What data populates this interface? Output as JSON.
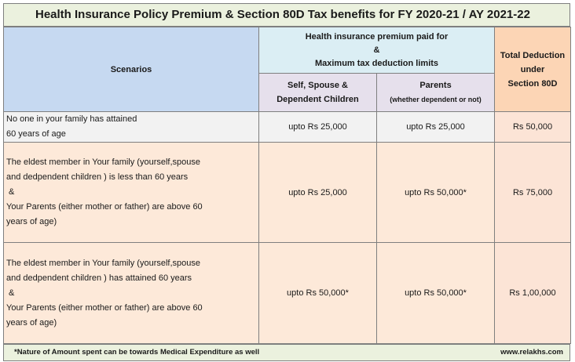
{
  "title": "Health Insurance Policy Premium & Section 80D Tax benefits for FY 2020-21 / AY 2021-22",
  "header": {
    "scenarios": "Scenarios",
    "premium_group": [
      "Health insurance premium paid for",
      "&",
      "Maximum tax deduction limits"
    ],
    "self_col": [
      "Self, Spouse &",
      "Dependent Children"
    ],
    "parents_col": "Parents",
    "parents_sub": "(whether dependent or not)",
    "total_col": [
      "Total Deduction",
      "under",
      "Section 80D"
    ]
  },
  "rows": [
    {
      "scenario": [
        "No one in your family has attained",
        "60 years of age"
      ],
      "self": "upto Rs 25,000",
      "parents": "upto Rs 25,000",
      "total": "Rs 50,000"
    },
    {
      "scenario": [
        "The eldest member in Your family (yourself,spouse",
        "and dedpendent children ) is less than 60 years",
        " &",
        "Your Parents (either mother or father) are above 60",
        "years of age)"
      ],
      "self": "upto Rs 25,000",
      "parents": "upto Rs 50,000*",
      "total": "Rs 75,000"
    },
    {
      "scenario": [
        "The eldest member in Your family (yourself,spouse",
        "and dedpendent children ) has attained 60 years",
        " &",
        "Your Parents (either mother or father) are above 60",
        "years of age)"
      ],
      "self": "upto Rs 50,000*",
      "parents": "upto Rs 50,000*",
      "total": "Rs 1,00,000"
    }
  ],
  "footer": {
    "note": "*Nature of Amount spent can be towards Medical Expenditure as well",
    "site": "www.relakhs.com"
  }
}
